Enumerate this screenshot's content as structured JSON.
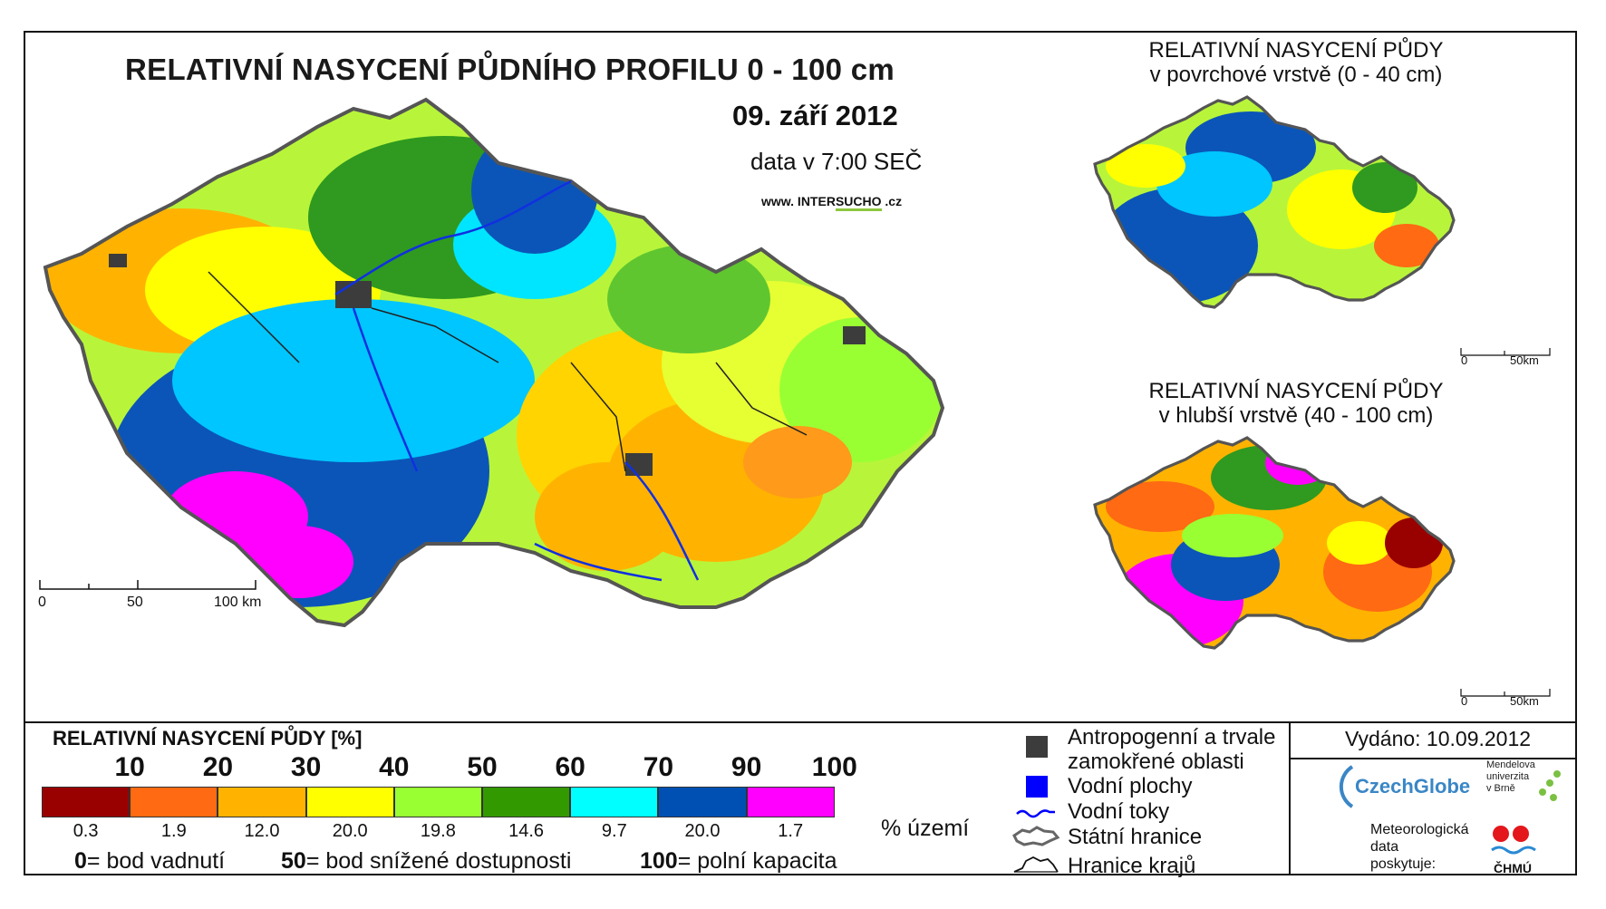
{
  "main_title": "RELATIVNÍ NASYCENÍ PŮDNÍHO PROFILU 0 - 100 cm",
  "date": "09. září 2012",
  "data_time": "data v 7:00 SEČ",
  "website": {
    "prefix": "www. INTER",
    "highlight": "SUCHO",
    "suffix": " .cz"
  },
  "inset_top": {
    "line1": "RELATIVNÍ NASYCENÍ PŮDY",
    "line2": "v povrchové vrstvě (0 - 40 cm)"
  },
  "inset_bottom": {
    "line1": "RELATIVNÍ NASYCENÍ PŮDY",
    "line2": "v hlubší vrstvě (40 - 100 cm)"
  },
  "main_scale": {
    "zero": "0",
    "mid": "50",
    "end": "100 km"
  },
  "inset_scale": {
    "zero": "0",
    "end": "50km"
  },
  "legend": {
    "title": "RELATIVNÍ NASYCENÍ PŮDY [%]",
    "ticks": [
      "10",
      "20",
      "30",
      "40",
      "50",
      "60",
      "70",
      "90",
      "100"
    ],
    "classes": [
      {
        "color": "#990000",
        "percent": "0.3"
      },
      {
        "color": "#ff6a13",
        "percent": "1.9"
      },
      {
        "color": "#ffb300",
        "percent": "12.0"
      },
      {
        "color": "#ffff00",
        "percent": "20.0"
      },
      {
        "color": "#99ff33",
        "percent": "19.8"
      },
      {
        "color": "#339900",
        "percent": "14.6"
      },
      {
        "color": "#00ffff",
        "percent": "9.7"
      },
      {
        "color": "#0050b4",
        "percent": "20.0"
      },
      {
        "color": "#ff00ff",
        "percent": "1.7"
      }
    ],
    "percent_unit": "% území",
    "explain": [
      {
        "key": "0",
        "text": "= bod vadnutí"
      },
      {
        "key": "50",
        "text": "= bod snížené dostupnosti"
      },
      {
        "key": "100",
        "text": "= polní kapacita"
      }
    ]
  },
  "symbols": {
    "anthropogenic_line1": "Antropogenní a trvale",
    "anthropogenic_line2": "zamokřené oblasti",
    "water_bodies": "Vodní plochy",
    "rivers": "Vodní toky",
    "state_border": "Státní hranice",
    "region_border": "Hranice krajů",
    "anthropogenic_color": "#3c3c3c",
    "water_color": "#0000ff"
  },
  "issued": "Vydáno: 10.09.2012",
  "logos": {
    "czechglobe": "CzechGlobe",
    "mendel": [
      "Mendelova",
      "univerzita",
      "v Brně"
    ],
    "meteo": [
      "Meteorologická",
      "data",
      "poskytuje:"
    ],
    "chmu": "ČHMÚ"
  }
}
